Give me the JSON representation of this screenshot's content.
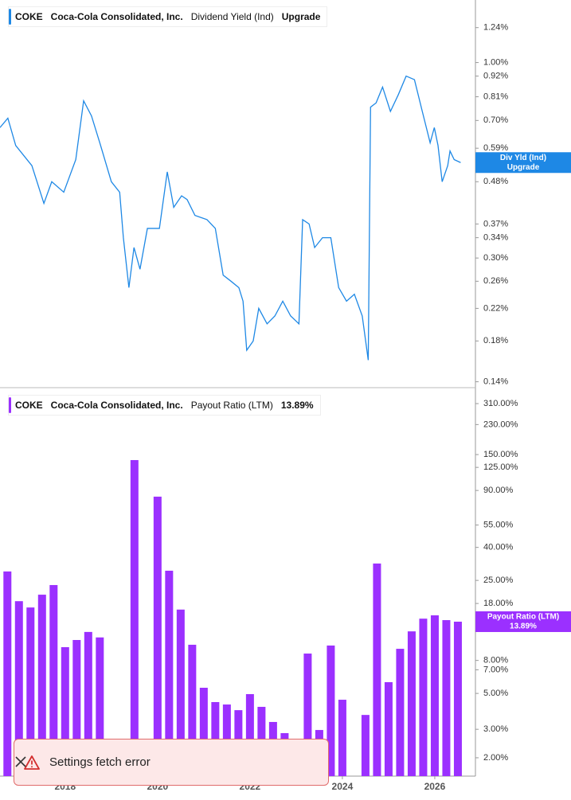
{
  "chart_data": [
    {
      "type": "line",
      "log_scale": true,
      "legend": {
        "ticker": "COKE",
        "company": "Coca-Cola Consolidated, Inc.",
        "metric": "Dividend Yield (Ind)",
        "status": "Upgrade"
      },
      "x": [
        2016.59,
        2016.76,
        2016.93,
        2017.28,
        2017.54,
        2017.71,
        2017.97,
        2018.23,
        2018.4,
        2018.57,
        2018.75,
        2019.0,
        2019.18,
        2019.26,
        2019.38,
        2019.49,
        2019.62,
        2019.78,
        2020.04,
        2020.21,
        2020.35,
        2020.52,
        2020.64,
        2020.81,
        2021.07,
        2021.25,
        2021.42,
        2021.59,
        2021.76,
        2021.85,
        2021.93,
        2022.07,
        2022.19,
        2022.37,
        2022.54,
        2022.71,
        2022.88,
        2023.06,
        2023.14,
        2023.28,
        2023.4,
        2023.57,
        2023.75,
        2023.92,
        2024.09,
        2024.26,
        2024.43,
        2024.56,
        2024.61,
        2024.73,
        2024.87,
        2025.04,
        2025.21,
        2025.38,
        2025.56,
        2025.73,
        2025.9,
        2025.99,
        2026.07,
        2026.16,
        2026.28,
        2026.33,
        2026.42,
        2026.56
      ],
      "series": [
        {
          "name": "Div Yld (Ind)",
          "color": "#1e88e5",
          "values": [
            0.67,
            0.71,
            0.6,
            0.53,
            0.42,
            0.48,
            0.45,
            0.55,
            0.79,
            0.72,
            0.61,
            0.48,
            0.45,
            0.34,
            0.25,
            0.32,
            0.28,
            0.36,
            0.36,
            0.51,
            0.41,
            0.44,
            0.43,
            0.39,
            0.38,
            0.36,
            0.27,
            0.26,
            0.25,
            0.23,
            0.17,
            0.18,
            0.22,
            0.2,
            0.21,
            0.23,
            0.21,
            0.2,
            0.38,
            0.37,
            0.32,
            0.34,
            0.34,
            0.25,
            0.23,
            0.24,
            0.21,
            0.16,
            0.76,
            0.78,
            0.86,
            0.74,
            0.82,
            0.92,
            0.9,
            0.74,
            0.61,
            0.67,
            0.6,
            0.48,
            0.53,
            0.58,
            0.55,
            0.54
          ]
        }
      ],
      "xlim": [
        2016.59,
        2026.88
      ],
      "ylim": [
        0.135,
        1.47
      ],
      "yticks": [
        {
          "value": 1.24,
          "label": "1.24%"
        },
        {
          "value": 1.0,
          "label": "1.00%"
        },
        {
          "value": 0.92,
          "label": "0.92%"
        },
        {
          "value": 0.81,
          "label": "0.81%"
        },
        {
          "value": 0.7,
          "label": "0.70%"
        },
        {
          "value": 0.59,
          "label": "0.59%"
        },
        {
          "value": 0.48,
          "label": "0.48%"
        },
        {
          "value": 0.37,
          "label": "0.37%"
        },
        {
          "value": 0.34,
          "label": "0.34%"
        },
        {
          "value": 0.3,
          "label": "0.30%"
        },
        {
          "value": 0.26,
          "label": "0.26%"
        },
        {
          "value": 0.22,
          "label": "0.22%"
        },
        {
          "value": 0.18,
          "label": "0.18%"
        },
        {
          "value": 0.14,
          "label": "0.14%"
        }
      ]
    },
    {
      "type": "bar",
      "log_scale": true,
      "legend": {
        "ticker": "COKE",
        "company": "Coca-Cola Consolidated, Inc.",
        "metric": "Payout Ratio (LTM)"
      },
      "last_value_label": "13.89%",
      "x": [
        2016.75,
        2017.0,
        2017.25,
        2017.5,
        2017.75,
        2018.0,
        2018.25,
        2018.5,
        2018.75,
        2019.0,
        2019.25,
        2019.5,
        2019.75,
        2020.0,
        2020.25,
        2020.5,
        2020.75,
        2021.0,
        2021.25,
        2021.5,
        2021.75,
        2022.0,
        2022.25,
        2022.5,
        2022.75,
        2023.0,
        2023.25,
        2023.5,
        2023.75,
        2024.0,
        2024.25,
        2024.5,
        2024.75,
        2025.0,
        2025.25,
        2025.5,
        2025.75,
        2026.0,
        2026.25,
        2026.5
      ],
      "series": [
        {
          "name": "Payout Ratio (LTM)",
          "color": "#9b30ff",
          "values": [
            28.4,
            18.6,
            17.0,
            20.4,
            23.4,
            9.66,
            10.7,
            12.0,
            11.1,
            null,
            null,
            138.7,
            null,
            82.4,
            28.7,
            16.5,
            10.0,
            5.42,
            4.42,
            4.27,
            3.94,
            4.95,
            4.13,
            3.33,
            2.84,
            null,
            8.82,
            2.97,
            9.89,
            4.57,
            null,
            3.68,
            31.8,
            5.87,
            9.44,
            12.1,
            14.5,
            15.2,
            14.2,
            13.89
          ]
        }
      ],
      "xlim": [
        2016.59,
        2026.88
      ],
      "xticks": [
        2018,
        2020,
        2022,
        2024,
        2026
      ],
      "ylim": [
        1.54,
        389
      ],
      "yticks": [
        {
          "value": 310,
          "label": "310.00%"
        },
        {
          "value": 230,
          "label": "230.00%"
        },
        {
          "value": 150,
          "label": "150.00%"
        },
        {
          "value": 125,
          "label": "125.00%"
        },
        {
          "value": 90,
          "label": "90.00%"
        },
        {
          "value": 55,
          "label": "55.00%"
        },
        {
          "value": 40,
          "label": "40.00%"
        },
        {
          "value": 25,
          "label": "25.00%"
        },
        {
          "value": 18,
          "label": "18.00%"
        },
        {
          "value": 8,
          "label": "8.00%"
        },
        {
          "value": 7,
          "label": "7.00%"
        },
        {
          "value": 5,
          "label": "5.00%"
        },
        {
          "value": 3,
          "label": "3.00%"
        },
        {
          "value": 2,
          "label": "2.00%"
        }
      ]
    }
  ],
  "toast": {
    "message": "Settings fetch error"
  }
}
